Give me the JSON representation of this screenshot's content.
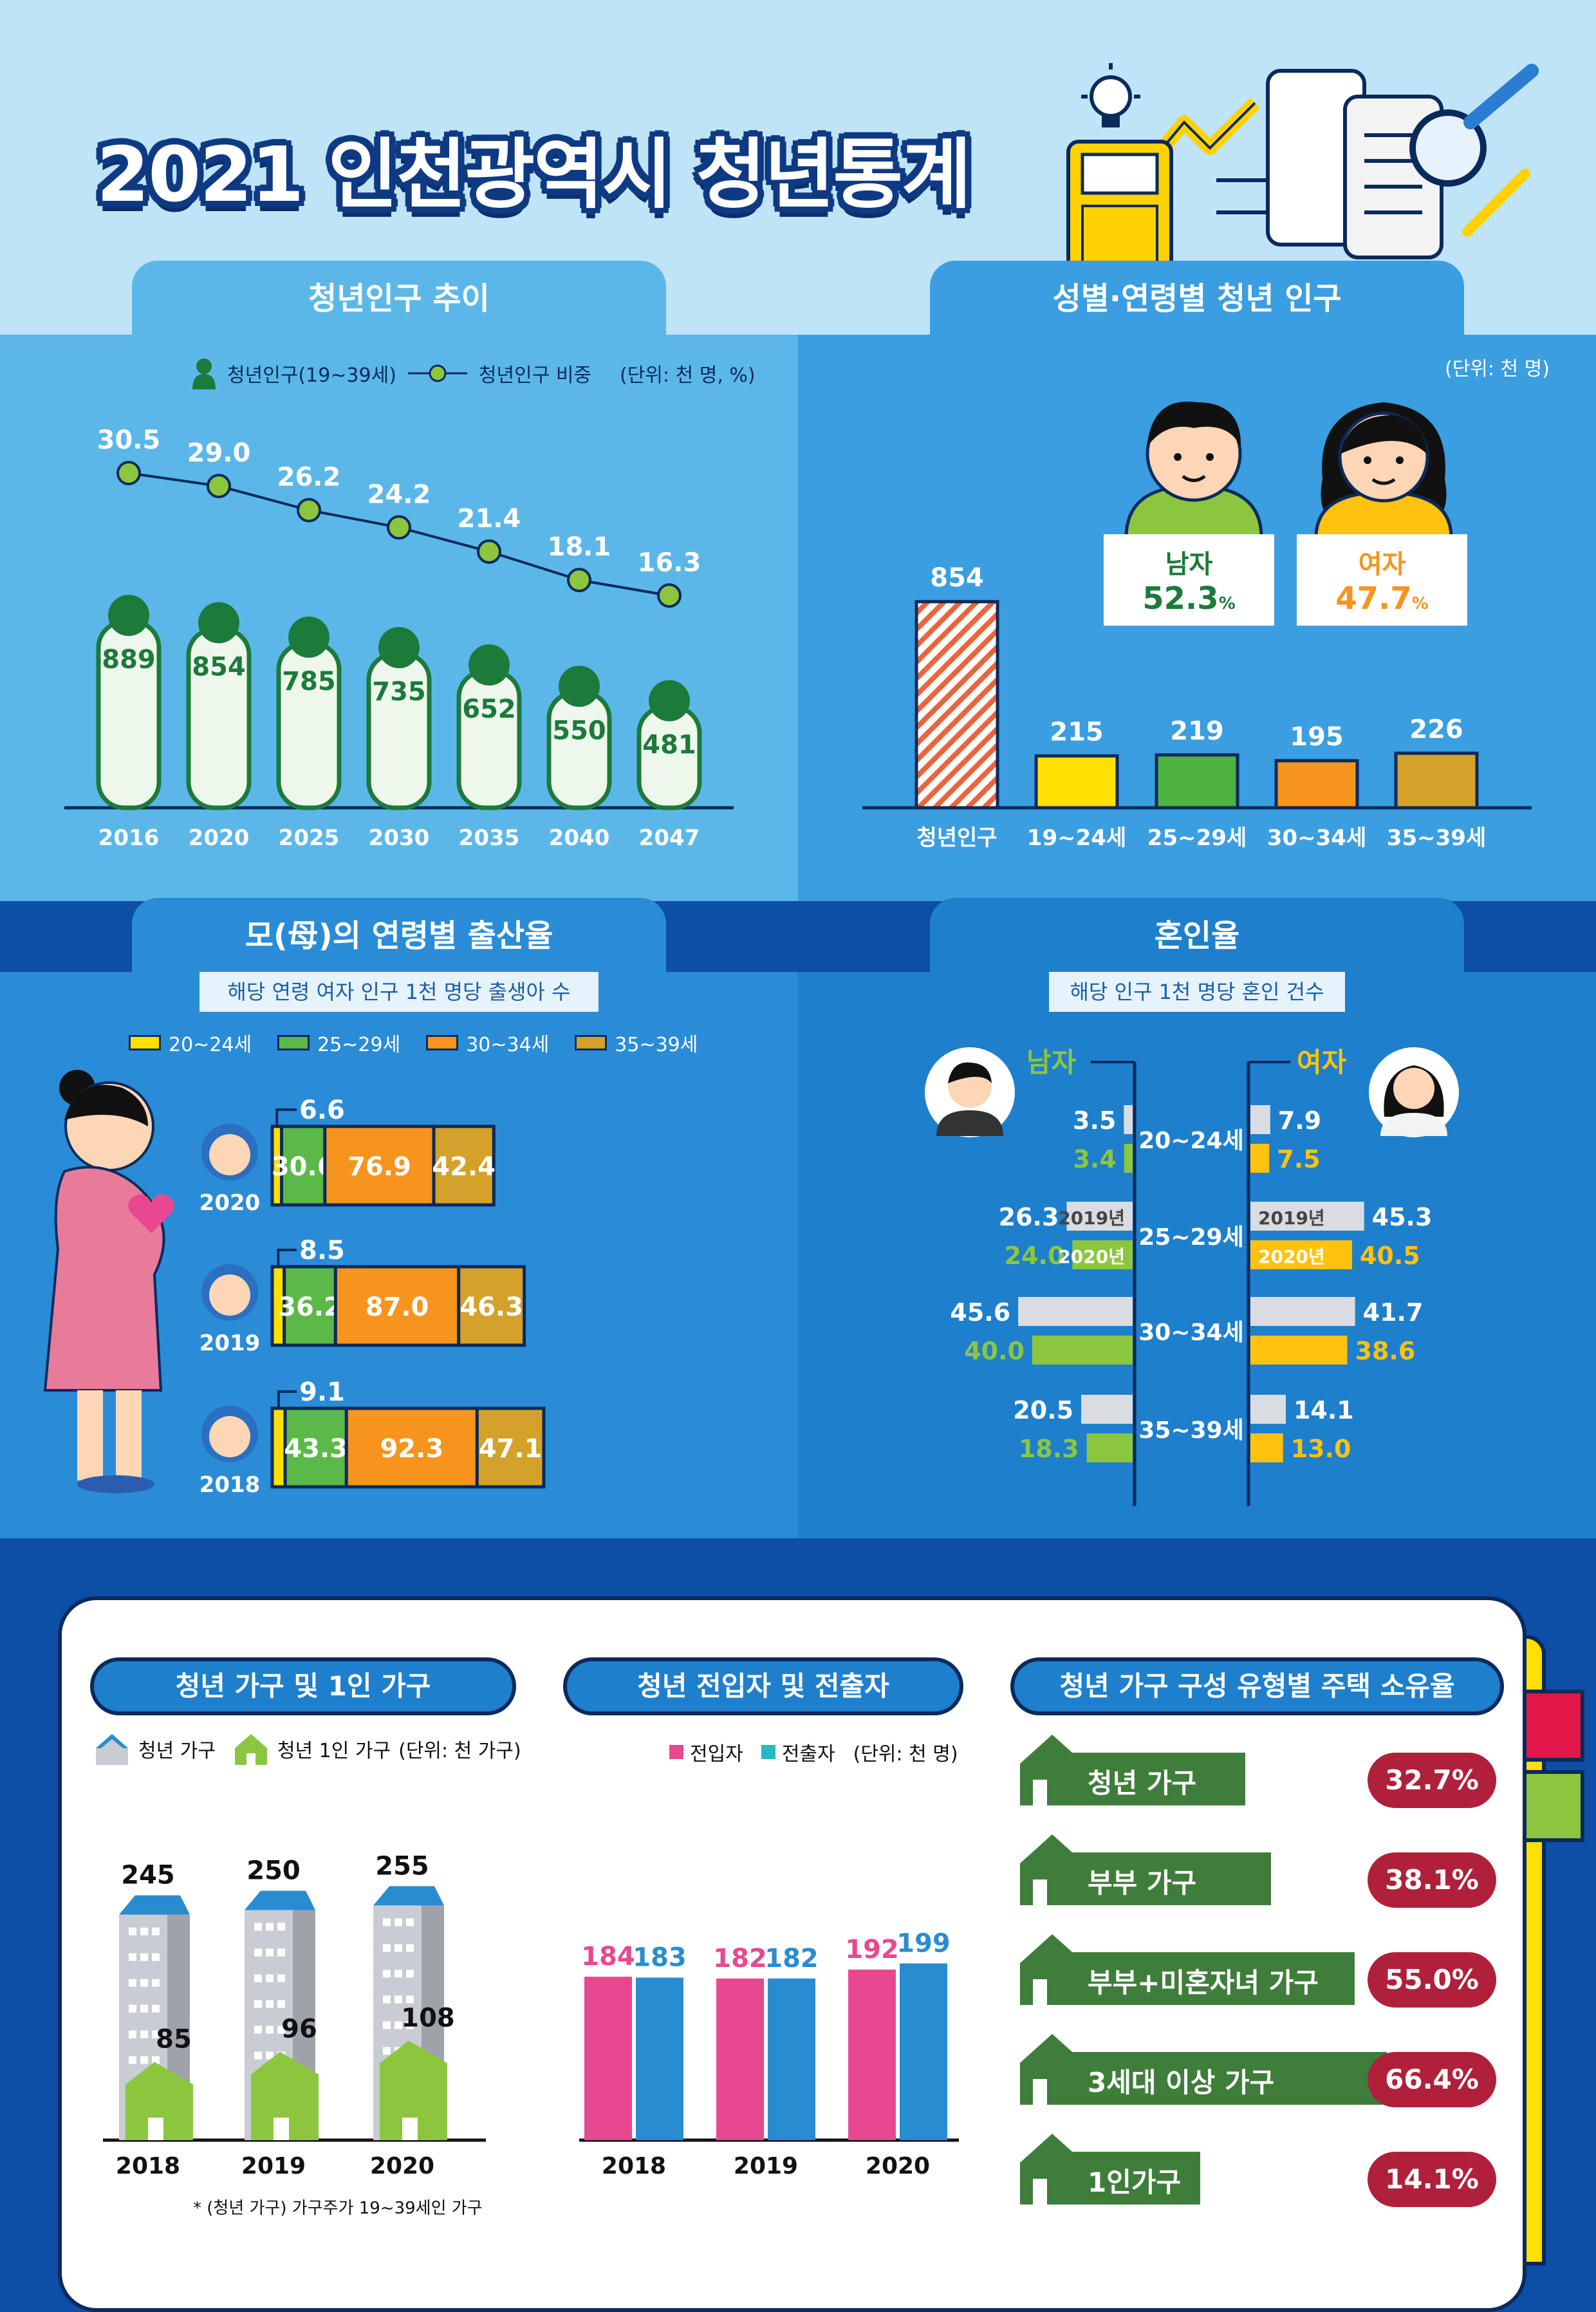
{
  "title": "2021 인천광역시 청년통계",
  "pop_trend": {
    "tab": "청년인구 추이",
    "legend_pop": "청년인구(19~39세)",
    "legend_ratio": "청년인구 비중",
    "unit": "(단위: 천 명, %)"
  },
  "gender_age": {
    "tab": "성별·연령별 청년 인구",
    "unit": "(단위: 천 명)",
    "male_label": "남자",
    "male_pct": "52.3",
    "female_label": "여자",
    "female_pct": "47.7",
    "pct_sign": "%"
  },
  "birth": {
    "tab": "모(母)의 연령별 출산율",
    "sub": "해당 연령 여자 인구 1천 명당 출생아 수",
    "legend": [
      "20~24세",
      "25~29세",
      "30~34세",
      "35~39세"
    ]
  },
  "marriage": {
    "tab": "혼인율",
    "sub": "해당 인구 1천 명당 혼인 건수",
    "male": "남자",
    "female": "여자",
    "y2019": "2019년",
    "y2020": "2020년"
  },
  "households": {
    "pill": "청년 가구 및 1인 가구",
    "legend_a": "청년 가구",
    "legend_b": "청년 1인 가구",
    "unit": "(단위: 천 가구)",
    "note": "* (청년 가구) 가구주가 19~39세인 가구"
  },
  "migration": {
    "pill": "청년 전입자 및 전출자",
    "legend_in": "전입자",
    "legend_out": "전출자",
    "unit": "(단위: 천 명)"
  },
  "housing": {
    "pill": "청년 가구 구성 유형별 주택 소유율",
    "rows": [
      {
        "label": "청년 가구",
        "value": "32.7%"
      },
      {
        "label": "부부 가구",
        "value": "38.1%"
      },
      {
        "label": "부부+미혼자녀 가구",
        "value": "55.0%"
      },
      {
        "label": "3세대 이상 가구",
        "value": "66.4%"
      },
      {
        "label": "1인가구",
        "value": "14.1%"
      }
    ]
  },
  "colors": {
    "green_dark": "#1c7a3a",
    "green_light": "#8cc63f",
    "yellow": "#ffe000",
    "orange": "#f7941d",
    "gold": "#d4a12a",
    "pink": "#e8488f",
    "blue": "#2a8cd0",
    "crimson": "#b0203a"
  },
  "chart_data": [
    {
      "id": "pop_trend",
      "type": "bar",
      "categories": [
        "2016",
        "2020",
        "2025",
        "2030",
        "2035",
        "2040",
        "2047"
      ],
      "series": [
        {
          "name": "청년인구(19~39세)",
          "values": [
            889,
            854,
            785,
            735,
            652,
            550,
            481
          ]
        },
        {
          "name": "청년인구 비중",
          "values": [
            30.5,
            29.0,
            26.2,
            24.2,
            21.4,
            18.1,
            16.3
          ],
          "labels": [
            "30.5",
            "29.0",
            "26.2",
            "24.2",
            "21.4",
            "18.1",
            "16.3"
          ]
        }
      ]
    },
    {
      "id": "gender_age",
      "type": "bar",
      "categories": [
        "청년인구",
        "19~24세",
        "25~29세",
        "30~34세",
        "35~39세"
      ],
      "values": [
        854,
        215,
        219,
        195,
        226
      ]
    },
    {
      "id": "birth",
      "type": "bar",
      "categories": [
        "2020",
        "2019",
        "2018"
      ],
      "series": [
        {
          "name": "20~24세",
          "values": [
            6.6,
            8.5,
            9.1
          ]
        },
        {
          "name": "25~29세",
          "values": [
            30.6,
            36.2,
            43.3
          ]
        },
        {
          "name": "30~34세",
          "values": [
            76.9,
            87.0,
            92.3
          ]
        },
        {
          "name": "35~39세",
          "values": [
            42.4,
            46.3,
            47.1
          ]
        }
      ]
    },
    {
      "id": "marriage",
      "type": "bar",
      "categories": [
        "20~24세",
        "25~29세",
        "30~34세",
        "35~39세"
      ],
      "male": {
        "y2019": [
          "3.5",
          "26.3",
          "45.6",
          "20.5"
        ],
        "y2020": [
          "3.4",
          "24.0",
          "40.0",
          "18.3"
        ]
      },
      "female": {
        "y2019": [
          "7.9",
          "45.3",
          "41.7",
          "14.1"
        ],
        "y2020": [
          "7.5",
          "40.5",
          "38.6",
          "13.0"
        ]
      }
    },
    {
      "id": "households",
      "type": "bar",
      "categories": [
        "2018",
        "2019",
        "2020"
      ],
      "series": [
        {
          "name": "청년 가구",
          "values": [
            245,
            250,
            255
          ]
        },
        {
          "name": "청년 1인 가구",
          "values": [
            85,
            96,
            108
          ]
        }
      ]
    },
    {
      "id": "migration",
      "type": "bar",
      "categories": [
        "2018",
        "2019",
        "2020"
      ],
      "series": [
        {
          "name": "전입자",
          "values": [
            184,
            182,
            192
          ]
        },
        {
          "name": "전출자",
          "values": [
            183,
            182,
            199
          ]
        }
      ]
    },
    {
      "id": "housing",
      "type": "table",
      "categories": [
        "청년 가구",
        "부부 가구",
        "부부+미혼자녀 가구",
        "3세대 이상 가구",
        "1인가구"
      ],
      "values": [
        32.7,
        38.1,
        55.0,
        66.4,
        14.1
      ]
    }
  ]
}
